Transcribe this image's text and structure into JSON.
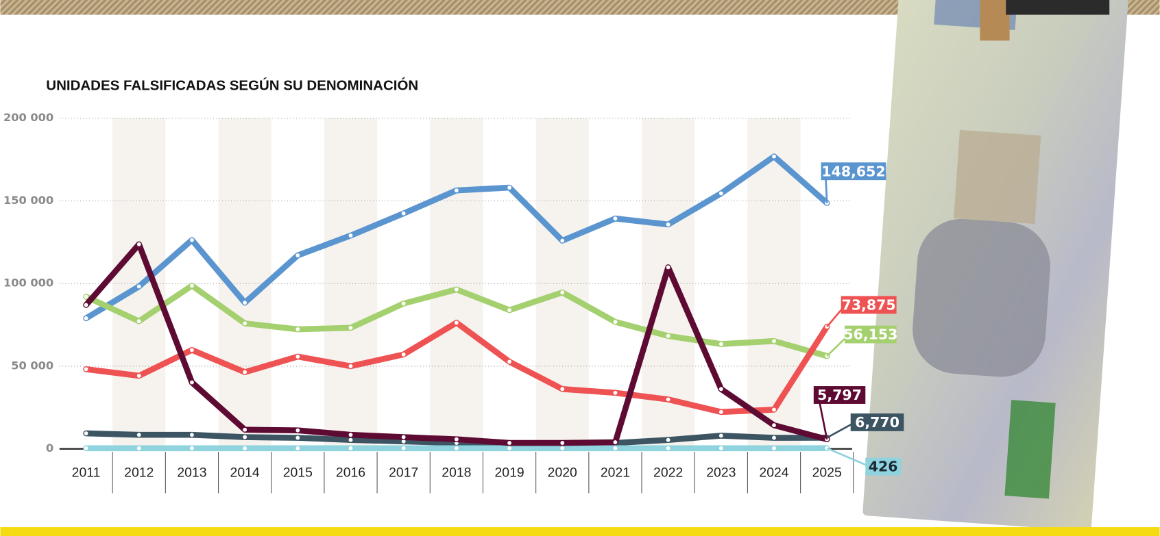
{
  "chart_data": {
    "type": "line",
    "title": "UNIDADES FALSIFICADAS SEGÚN SU  DENOMINACIÓN",
    "categories": [
      "2011",
      "2012",
      "2013",
      "2014",
      "2015",
      "2016",
      "2017",
      "2018",
      "2019",
      "2020",
      "2021",
      "2022",
      "2023",
      "2024",
      "2025"
    ],
    "ylim": [
      0,
      200000
    ],
    "yticks": [
      0,
      {
        "value": 50000,
        "label": "50 000"
      },
      {
        "value": 100000,
        "label": "100 000"
      },
      {
        "value": 150000,
        "label": "150 000"
      },
      {
        "value": 200000,
        "label": "200 000"
      }
    ],
    "grid": true,
    "series": [
      {
        "color": "#5b95d0",
        "values": [
          79000,
          98200,
          126300,
          88400,
          117000,
          129000,
          142400,
          156300,
          158000,
          125900,
          139300,
          135700,
          154500,
          176800,
          148652
        ],
        "value_labels": [
          null,
          null,
          null,
          null,
          null,
          null,
          null,
          null,
          null,
          null,
          null,
          null,
          null,
          null,
          "148,652"
        ]
      },
      {
        "color": "#a5d06f",
        "values": [
          92000,
          77200,
          98700,
          75900,
          72300,
          73200,
          87900,
          96400,
          83900,
          94600,
          76800,
          68300,
          63400,
          65200,
          56153
        ],
        "value_labels": [
          null,
          null,
          null,
          null,
          null,
          null,
          null,
          null,
          null,
          null,
          null,
          null,
          null,
          null,
          "56,153"
        ]
      },
      {
        "color": "#ee5253",
        "values": [
          48200,
          44200,
          59800,
          46400,
          55800,
          50000,
          57100,
          76300,
          52700,
          36200,
          33900,
          29900,
          22300,
          23700,
          73875
        ],
        "value_labels": [
          null,
          null,
          null,
          null,
          null,
          null,
          null,
          null,
          null,
          null,
          null,
          null,
          null,
          null,
          "73,875"
        ]
      },
      {
        "color": "#3d5563",
        "values": [
          9400,
          8500,
          8500,
          7100,
          6700,
          5400,
          4500,
          3600,
          3100,
          3100,
          3600,
          5400,
          8000,
          6700,
          6770
        ],
        "value_labels": [
          null,
          null,
          null,
          null,
          null,
          null,
          null,
          null,
          null,
          null,
          null,
          null,
          null,
          null,
          "6,770"
        ]
      },
      {
        "color": "#8fd3de",
        "values": [
          400,
          400,
          400,
          400,
          400,
          400,
          400,
          400,
          400,
          400,
          400,
          400,
          400,
          400,
          426
        ],
        "value_labels": [
          null,
          null,
          null,
          null,
          null,
          null,
          null,
          null,
          null,
          null,
          null,
          null,
          null,
          null,
          "426"
        ]
      },
      {
        "color": "#5e0b33",
        "values": [
          87000,
          123700,
          40200,
          11600,
          11200,
          8500,
          7100,
          5800,
          3600,
          3600,
          4000,
          109800,
          36200,
          14300,
          5797
        ],
        "value_labels": [
          null,
          null,
          null,
          null,
          null,
          null,
          null,
          null,
          null,
          null,
          null,
          null,
          null,
          null,
          "5,797"
        ]
      }
    ]
  }
}
